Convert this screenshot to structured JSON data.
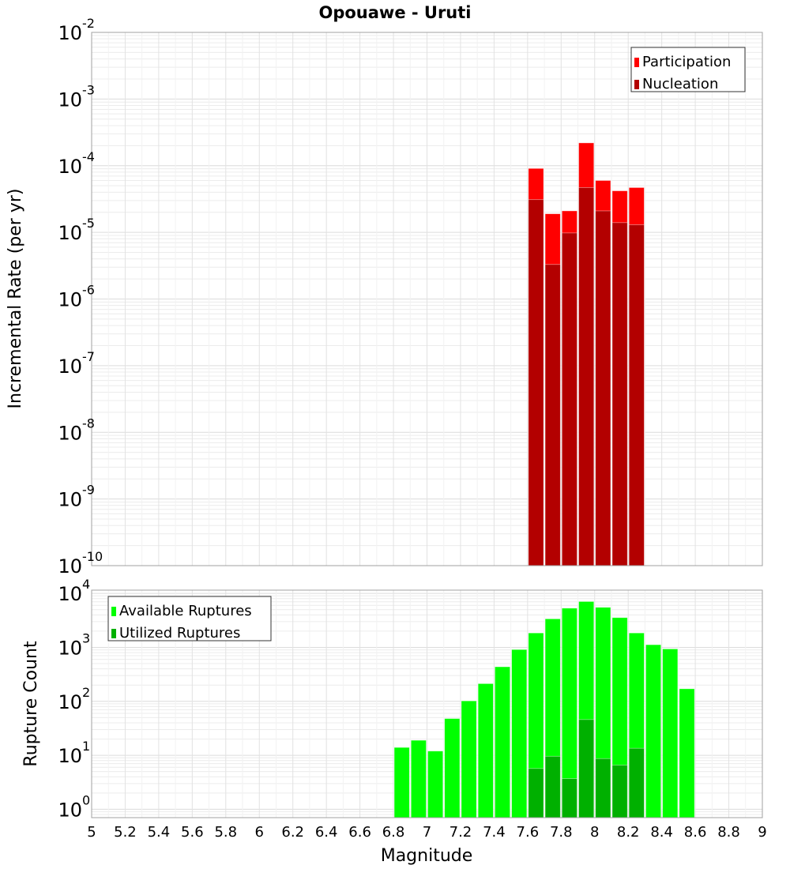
{
  "chart_data": [
    {
      "type": "bar",
      "title": "Opouawe - Uruti",
      "xlabel": "",
      "ylabel": "Incremental Rate (per yr)",
      "yscale": "log",
      "xlim": [
        5,
        9
      ],
      "ylim": [
        1e-10,
        0.01
      ],
      "y_tick_exponents": [
        -10,
        -9,
        -8,
        -7,
        -6,
        -5,
        -4,
        -3,
        -2
      ],
      "bin_width": 0.1,
      "legend_position": "top-right",
      "series": [
        {
          "name": "Participation",
          "color": "#ff0000",
          "x": [
            7.65,
            7.75,
            7.85,
            7.95,
            8.05,
            8.15,
            8.25
          ],
          "values": [
            9.1e-05,
            1.9e-05,
            2.1e-05,
            0.00022,
            6e-05,
            4.2e-05,
            4.7e-05
          ]
        },
        {
          "name": "Nucleation",
          "color": "#b30000",
          "x": [
            7.65,
            7.75,
            7.85,
            7.95,
            8.05,
            8.15,
            8.25
          ],
          "values": [
            3.1e-05,
            3.3e-06,
            9.8e-06,
            4.7e-05,
            2.1e-05,
            1.4e-05,
            1.3e-05
          ]
        }
      ]
    },
    {
      "type": "bar",
      "xlabel": "Magnitude",
      "ylabel": "Rupture Count",
      "yscale": "log",
      "xlim": [
        5,
        9
      ],
      "ylim": [
        0.7,
        11500
      ],
      "y_tick_exponents": [
        0,
        1,
        2,
        3,
        4
      ],
      "x_ticks": [
        "5",
        "5.2",
        "5.4",
        "5.6",
        "5.8",
        "6",
        "6.2",
        "6.4",
        "6.6",
        "6.8",
        "7",
        "7.2",
        "7.4",
        "7.6",
        "7.8",
        "8",
        "8.2",
        "8.4",
        "8.6",
        "8.8",
        "9"
      ],
      "bin_width": 0.1,
      "legend_position": "top-left",
      "series": [
        {
          "name": "Available Ruptures",
          "color": "#00ff00",
          "x": [
            6.85,
            6.95,
            7.05,
            7.15,
            7.25,
            7.35,
            7.45,
            7.55,
            7.65,
            7.75,
            7.85,
            7.95,
            8.05,
            8.15,
            8.25,
            8.35,
            8.45,
            8.55
          ],
          "values": [
            14,
            19,
            12,
            48,
            102,
            213,
            437,
            912,
            1850,
            3380,
            5330,
            7080,
            5520,
            3560,
            1850,
            1120,
            937,
            171
          ]
        },
        {
          "name": "Utilized Ruptures",
          "color": "#00b000",
          "x": [
            7.65,
            7.75,
            7.85,
            7.95,
            8.05,
            8.15,
            8.25
          ],
          "values": [
            5.7,
            9.6,
            3.7,
            46,
            8.7,
            6.6,
            13.5
          ]
        }
      ]
    }
  ]
}
